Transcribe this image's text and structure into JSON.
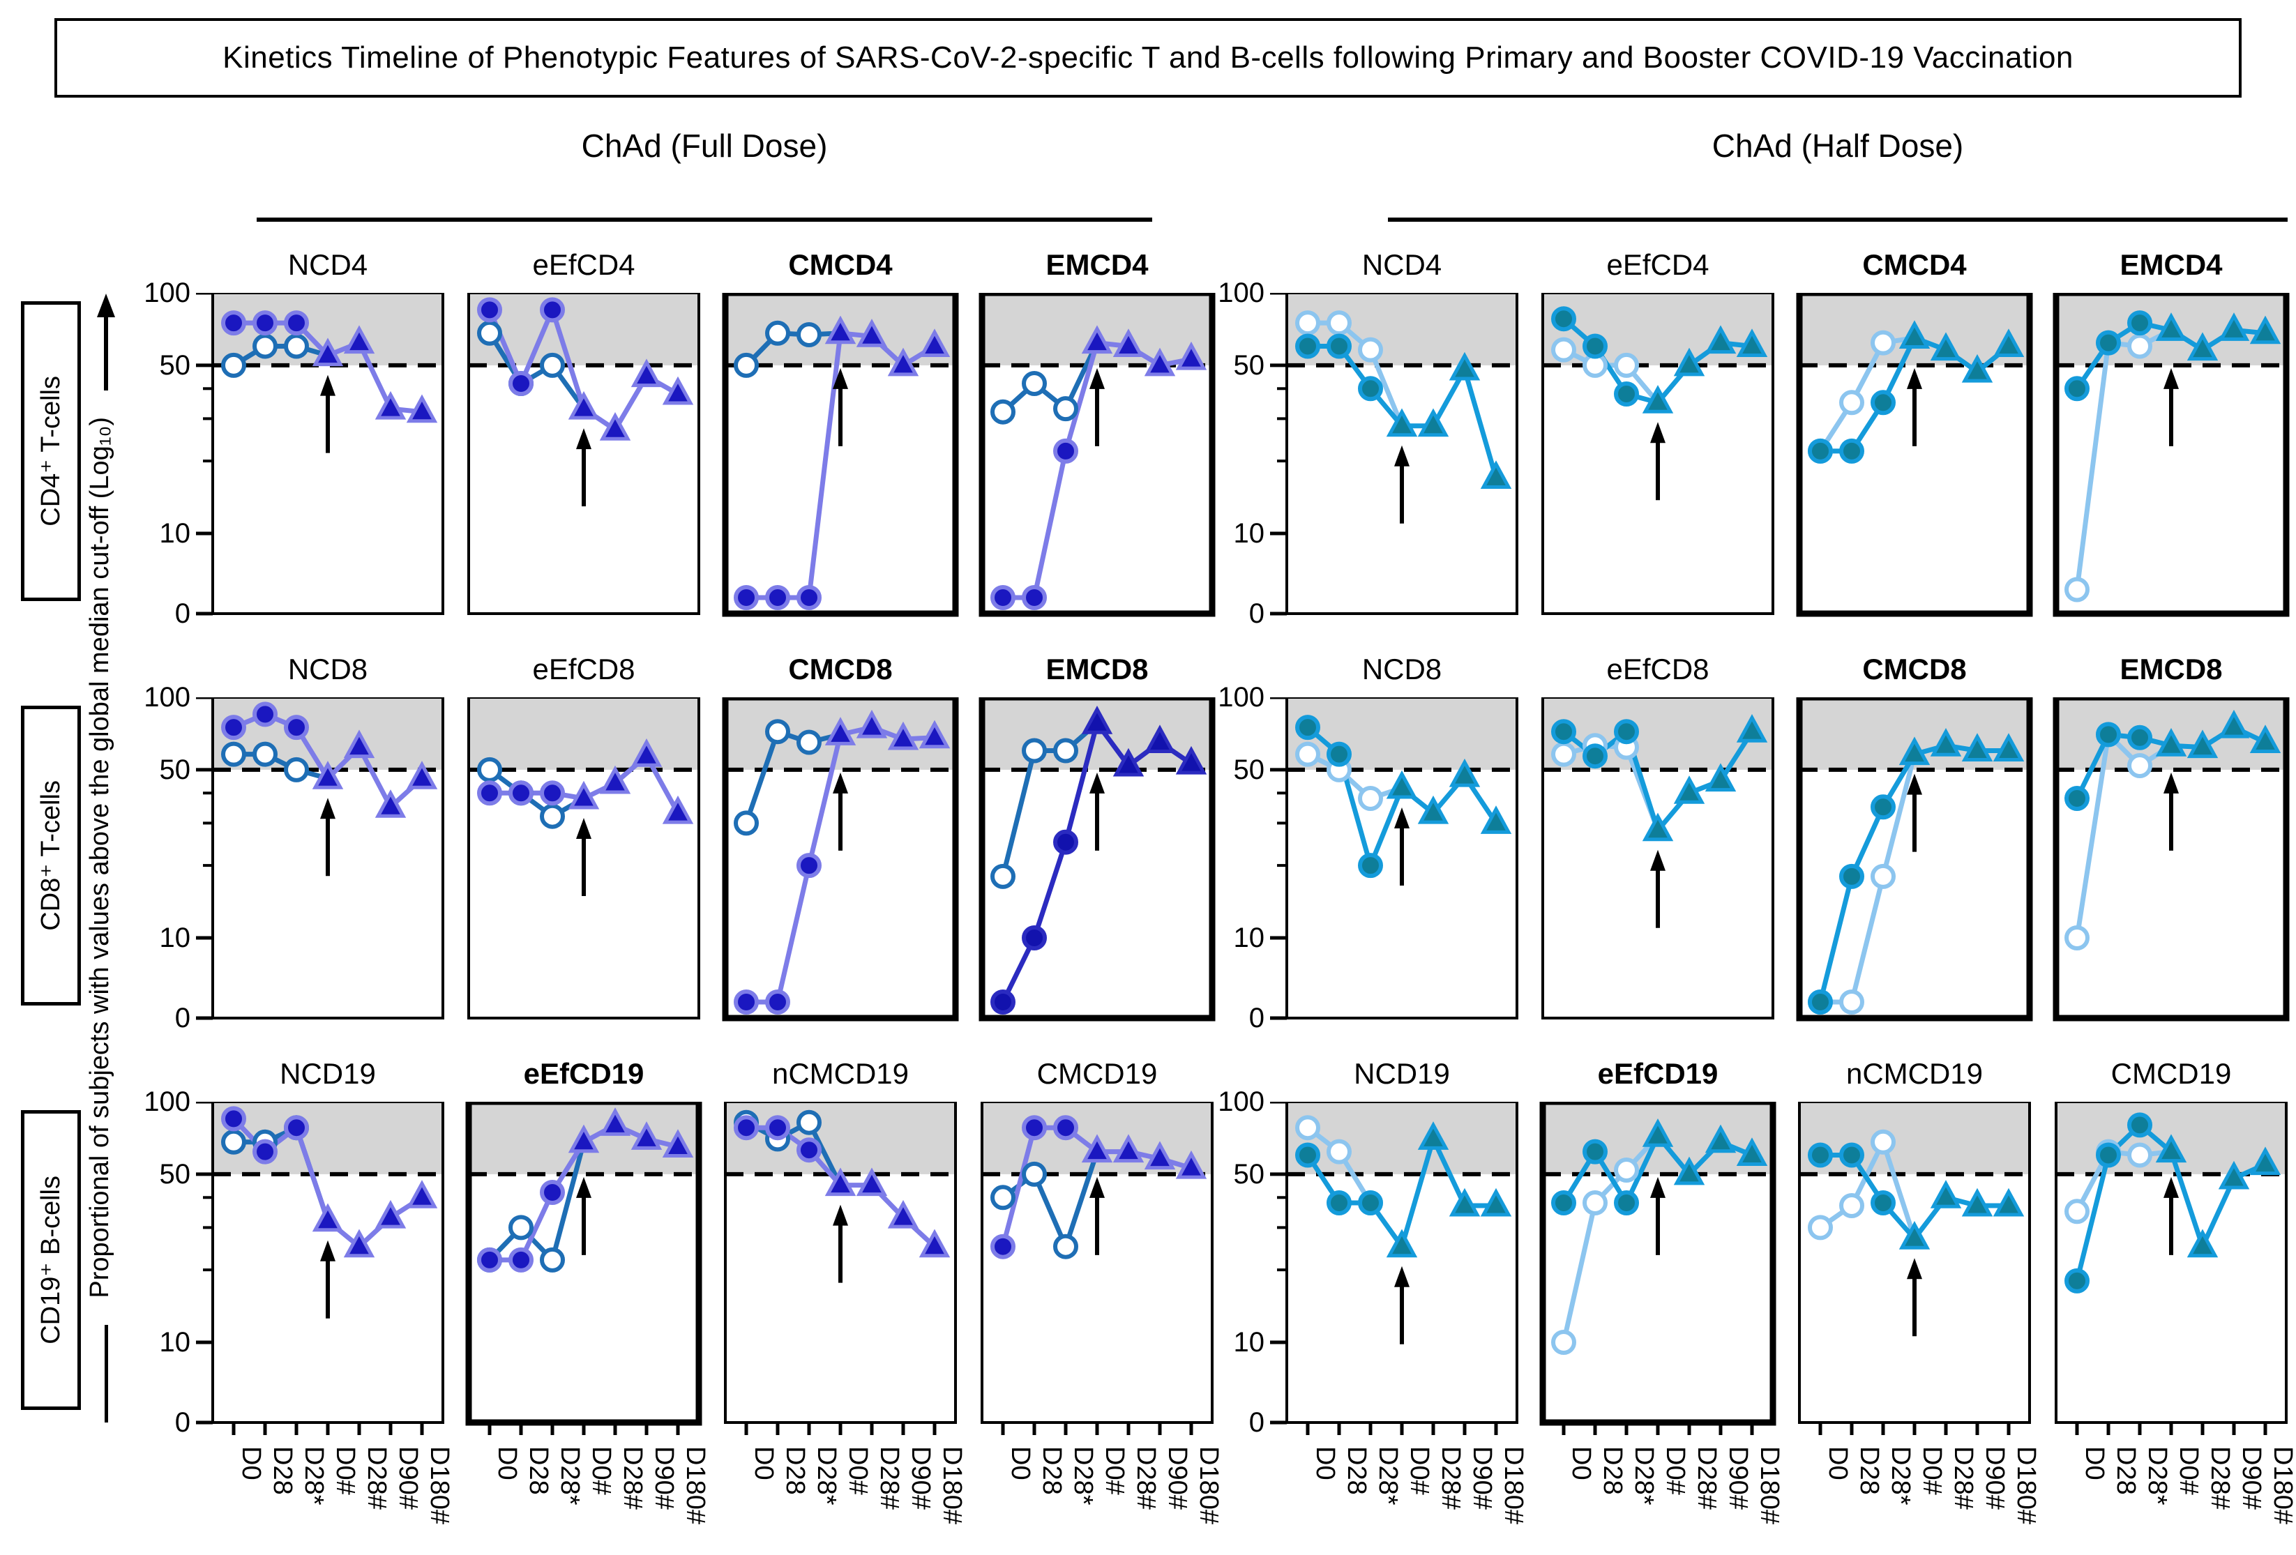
{
  "title": "Kinetics Timeline of Phenotypic Features of SARS-CoV-2-specific T and B-cells following Primary and Booster COVID-19 Vaccination",
  "header": {
    "full": "ChAd (Full Dose)",
    "half": "ChAd (Half Dose)"
  },
  "rows": [
    {
      "label": "CD4⁺ T-cells"
    },
    {
      "label": "CD8⁺ T-cells"
    },
    {
      "label": "CD19⁺ B-cells"
    }
  ],
  "y_axis": {
    "label": "Proportional of subjects with values above the global median cut-off (Log₁₀)",
    "tick_labels": [
      100,
      50,
      10,
      0
    ],
    "minor_ticks": [
      40,
      30,
      20
    ],
    "cutoff_line": 50,
    "scale": "log10 above 10, linear 10 to 0"
  },
  "chart_data": {
    "type": "line",
    "title": "Kinetics Timeline of Phenotypic Features of SARS-CoV-2-specific T and B-cells following Primary and Booster COVID-19 Vaccination",
    "x_categories": [
      "D0",
      "D28",
      "D28*",
      "D0#",
      "D28#",
      "D90#",
      "D180#"
    ],
    "ylim": [
      0,
      100
    ],
    "cutoff": 50,
    "shaded_band": [
      50,
      100
    ],
    "booster_arrow_at": "D0#",
    "legend_position": "none",
    "grid": false,
    "marker_scheme": {
      "primary": "filled circles (D0, D28, D28*) then filled triangles (D0#, D28#, D90#, D180#)",
      "secondary": "open circles (D0, D28, D28*), line merges with primary at D0#"
    },
    "palettes": {
      "full": {
        "line_a": "#7d7ce8",
        "marker_a": "#1a17c0",
        "line_b": "#1e6eb5",
        "open_fill": "#ffffff"
      },
      "full_dark": {
        "line_a": "#2b2bc0",
        "marker_a": "#1212ad",
        "line_b": "#1e6eb5",
        "open_fill": "#ffffff"
      },
      "half": {
        "line_a": "#149bdb",
        "marker_a": "#0e7e99",
        "line_b": "#8cc5ef",
        "open_fill": "#ffffff"
      },
      "band_grey": "#d5d5d5"
    },
    "panels": [
      {
        "group": "full",
        "row": "CD4+ T-cells",
        "title": "NCD4",
        "bold": false,
        "palette": "full",
        "series": [
          {
            "name": "primary",
            "values": [
              75,
              75,
              75,
              55,
              62,
              33,
              32
            ]
          },
          {
            "name": "secondary",
            "values": [
              50,
              60,
              60,
              55
            ]
          }
        ]
      },
      {
        "group": "full",
        "row": "CD4+ T-cells",
        "title": "eEfCD4",
        "bold": false,
        "palette": "full",
        "series": [
          {
            "name": "primary",
            "values": [
              85,
              42,
              85,
              33,
              27,
              45,
              38
            ]
          },
          {
            "name": "secondary",
            "values": [
              68,
              42,
              50,
              33
            ]
          }
        ]
      },
      {
        "group": "full",
        "row": "CD4+ T-cells",
        "title": "CMCD4",
        "bold": true,
        "palette": "full",
        "series": [
          {
            "name": "primary",
            "values": [
              2,
              2,
              2,
              68,
              66,
              50,
              60
            ]
          },
          {
            "name": "secondary",
            "values": [
              50,
              68,
              67,
              68
            ]
          }
        ]
      },
      {
        "group": "full",
        "row": "CD4+ T-cells",
        "title": "EMCD4",
        "bold": true,
        "palette": "full",
        "series": [
          {
            "name": "primary",
            "values": [
              2,
              2,
              22,
              62,
              60,
              50,
              53
            ]
          },
          {
            "name": "secondary",
            "values": [
              32,
              42,
              33,
              62
            ]
          }
        ]
      },
      {
        "group": "half",
        "row": "CD4+ T-cells",
        "title": "NCD4",
        "bold": false,
        "palette": "half",
        "series": [
          {
            "name": "primary",
            "values": [
              60,
              60,
              40,
              28,
              28,
              48,
              17
            ]
          },
          {
            "name": "secondary",
            "values": [
              75,
              75,
              58,
              28
            ]
          }
        ]
      },
      {
        "group": "half",
        "row": "CD4+ T-cells",
        "title": "eEfCD4",
        "bold": false,
        "palette": "half",
        "series": [
          {
            "name": "primary",
            "values": [
              78,
              60,
              38,
              35,
              50,
              62,
              60
            ]
          },
          {
            "name": "secondary",
            "values": [
              58,
              50,
              50,
              35
            ]
          }
        ]
      },
      {
        "group": "half",
        "row": "CD4+ T-cells",
        "title": "CMCD4",
        "bold": true,
        "palette": "half",
        "series": [
          {
            "name": "primary",
            "values": [
              22,
              22,
              35,
              65,
              58,
              47,
              60
            ]
          },
          {
            "name": "secondary",
            "values": [
              22,
              35,
              62,
              65
            ]
          }
        ]
      },
      {
        "group": "half",
        "row": "CD4+ T-cells",
        "title": "EMCD4",
        "bold": true,
        "palette": "half",
        "series": [
          {
            "name": "primary",
            "values": [
              40,
              62,
              75,
              70,
              58,
              70,
              68
            ]
          },
          {
            "name": "secondary",
            "values": [
              3,
              62,
              60,
              70
            ]
          }
        ]
      },
      {
        "group": "full",
        "row": "CD8+ T-cells",
        "title": "NCD8",
        "bold": false,
        "palette": "full",
        "series": [
          {
            "name": "primary",
            "values": [
              75,
              85,
              75,
              46,
              62,
              35,
              46
            ]
          },
          {
            "name": "secondary",
            "values": [
              58,
              58,
              50,
              46
            ]
          }
        ]
      },
      {
        "group": "full",
        "row": "CD8+ T-cells",
        "title": "eEfCD8",
        "bold": false,
        "palette": "full",
        "series": [
          {
            "name": "primary",
            "values": [
              40,
              40,
              40,
              38,
              44,
              57,
              33
            ]
          },
          {
            "name": "secondary",
            "values": [
              50,
              40,
              32,
              38
            ]
          }
        ]
      },
      {
        "group": "full",
        "row": "CD8+ T-cells",
        "title": "CMCD8",
        "bold": true,
        "palette": "full",
        "series": [
          {
            "name": "primary",
            "values": [
              2,
              2,
              20,
              70,
              75,
              67,
              68
            ]
          },
          {
            "name": "secondary",
            "values": [
              30,
              72,
              65,
              70
            ]
          }
        ]
      },
      {
        "group": "full",
        "row": "CD8+ T-cells",
        "title": "EMCD8",
        "bold": true,
        "palette": "full_dark",
        "series": [
          {
            "name": "primary",
            "values": [
              2,
              10,
              25,
              78,
              52,
              65,
              53
            ]
          },
          {
            "name": "secondary",
            "values": [
              18,
              60,
              60,
              78
            ]
          }
        ]
      },
      {
        "group": "half",
        "row": "CD8+ T-cells",
        "title": "NCD8",
        "bold": false,
        "palette": "half",
        "series": [
          {
            "name": "primary",
            "values": [
              75,
              58,
              20,
              42,
              33,
              47,
              30
            ]
          },
          {
            "name": "secondary",
            "values": [
              58,
              50,
              38,
              42
            ]
          }
        ]
      },
      {
        "group": "half",
        "row": "CD8+ T-cells",
        "title": "eEfCD8",
        "bold": false,
        "palette": "half",
        "series": [
          {
            "name": "primary",
            "values": [
              72,
              57,
              72,
              28,
              40,
              45,
              72
            ]
          },
          {
            "name": "secondary",
            "values": [
              58,
              63,
              62,
              28
            ]
          }
        ]
      },
      {
        "group": "half",
        "row": "CD8+ T-cells",
        "title": "CMCD8",
        "bold": true,
        "palette": "half",
        "series": [
          {
            "name": "primary",
            "values": [
              2,
              18,
              35,
              58,
              63,
              60,
              60
            ]
          },
          {
            "name": "secondary",
            "values": [
              2,
              2,
              18,
              58
            ]
          }
        ]
      },
      {
        "group": "half",
        "row": "CD8+ T-cells",
        "title": "EMCD8",
        "bold": true,
        "palette": "half",
        "series": [
          {
            "name": "primary",
            "values": [
              38,
              70,
              68,
              63,
              62,
              75,
              65
            ]
          },
          {
            "name": "secondary",
            "values": [
              10,
              70,
              52,
              63
            ]
          }
        ]
      },
      {
        "group": "full",
        "row": "CD19+ B-cells",
        "title": "NCD19",
        "bold": false,
        "palette": "full",
        "series": [
          {
            "name": "primary",
            "values": [
              85,
              62,
              78,
              32,
              25,
              33,
              40
            ]
          },
          {
            "name": "secondary",
            "values": [
              68,
              68,
              78,
              32
            ]
          }
        ]
      },
      {
        "group": "full",
        "row": "CD19+ B-cells",
        "title": "eEfCD19",
        "bold": true,
        "palette": "full",
        "series": [
          {
            "name": "primary",
            "values": [
              22,
              22,
              42,
              68,
              80,
              70,
              65
            ]
          },
          {
            "name": "secondary",
            "values": [
              22,
              30,
              22,
              68
            ]
          }
        ]
      },
      {
        "group": "full",
        "row": "CD19+ B-cells",
        "title": "nCMCD19",
        "bold": false,
        "palette": "full",
        "series": [
          {
            "name": "primary",
            "values": [
              78,
              78,
              63,
              45,
              45,
              33,
              25
            ]
          },
          {
            "name": "secondary",
            "values": [
              82,
              70,
              82,
              45
            ]
          }
        ]
      },
      {
        "group": "full",
        "row": "CD19+ B-cells",
        "title": "CMCD19",
        "bold": false,
        "palette": "full",
        "series": [
          {
            "name": "primary",
            "values": [
              25,
              78,
              78,
              62,
              62,
              58,
              53
            ]
          },
          {
            "name": "secondary",
            "values": [
              40,
              50,
              25,
              62
            ]
          }
        ]
      },
      {
        "group": "half",
        "row": "CD19+ B-cells",
        "title": "NCD19",
        "bold": false,
        "palette": "half",
        "series": [
          {
            "name": "primary",
            "values": [
              60,
              38,
              38,
              25,
              70,
              37,
              37
            ]
          },
          {
            "name": "secondary",
            "values": [
              78,
              62,
              38,
              25
            ]
          }
        ]
      },
      {
        "group": "half",
        "row": "CD19+ B-cells",
        "title": "eEfCD19",
        "bold": true,
        "palette": "half",
        "series": [
          {
            "name": "primary",
            "values": [
              38,
              62,
              38,
              72,
              50,
              68,
              60
            ]
          },
          {
            "name": "secondary",
            "values": [
              10,
              38,
              52,
              72
            ]
          }
        ]
      },
      {
        "group": "half",
        "row": "CD19+ B-cells",
        "title": "nCMCD19",
        "bold": false,
        "palette": "half",
        "series": [
          {
            "name": "primary",
            "values": [
              60,
              60,
              38,
              27,
              40,
              37,
              37
            ]
          },
          {
            "name": "secondary",
            "values": [
              30,
              37,
              68,
              27
            ]
          }
        ]
      },
      {
        "group": "half",
        "row": "CD19+ B-cells",
        "title": "CMCD19",
        "bold": false,
        "palette": "half",
        "series": [
          {
            "name": "primary",
            "values": [
              18,
              60,
              80,
              62,
              25,
              48,
              55
            ]
          },
          {
            "name": "secondary",
            "values": [
              35,
              62,
              60,
              62
            ]
          }
        ]
      }
    ]
  }
}
